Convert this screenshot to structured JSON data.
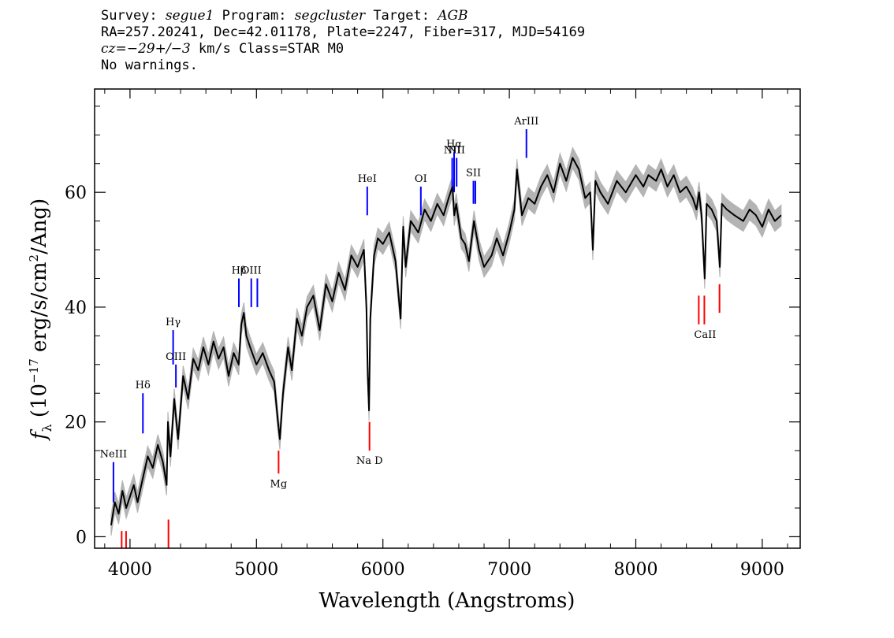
{
  "header": {
    "l1_survey_label": "Survey: ",
    "l1_survey": "segue1",
    "l1_program_label": " Program: ",
    "l1_program": "segcluster",
    "l1_target_label": " Target: ",
    "l1_target": "AGB",
    "l2": "RA=257.20241, Dec=42.01178, Plate=2247, Fiber=317, MJD=54169",
    "l3_cz": "cz=−29+/−3",
    "l3_rest": " km/s Class=STAR M0",
    "l4": "No warnings."
  },
  "colors": {
    "spectrum": "#000000",
    "error_band": "#b4b4b4",
    "emission": "#0000ff",
    "absorption": "#ff0000",
    "annotation": "#000000"
  },
  "chart_data": {
    "type": "line",
    "xlabel": "Wavelength (Angstroms)",
    "ylabel_f": "f",
    "ylabel_sub": "λ",
    "ylabel_rest_a": " (10",
    "ylabel_exp": "−17",
    "ylabel_rest_b": " erg/s/cm",
    "ylabel_exp2": "2",
    "ylabel_rest_c": "/Ang)",
    "xlim": [
      3720,
      9300
    ],
    "ylim": [
      -2,
      78
    ],
    "xticks": [
      4000,
      5000,
      6000,
      7000,
      8000,
      9000
    ],
    "xtick_labels": [
      "4000",
      "5000",
      "6000",
      "7000",
      "8000",
      "9000"
    ],
    "yticks": [
      0,
      20,
      40,
      60
    ],
    "ytick_labels": [
      "0",
      "20",
      "40",
      "60"
    ],
    "series": [
      {
        "x": [
          3850,
          3880,
          3910,
          3940,
          3970,
          4000,
          4030,
          4060,
          4100,
          4140,
          4180,
          4220,
          4260,
          4290,
          4300,
          4320,
          4350,
          4380,
          4420,
          4460,
          4500,
          4540,
          4580,
          4620,
          4660,
          4700,
          4740,
          4780,
          4820,
          4860,
          4880,
          4900,
          4920,
          4950,
          5000,
          5050,
          5100,
          5140,
          5170,
          5185,
          5210,
          5250,
          5280,
          5320,
          5360,
          5400,
          5450,
          5500,
          5550,
          5600,
          5650,
          5700,
          5750,
          5800,
          5850,
          5870,
          5880,
          5890,
          5900,
          5930,
          5960,
          6000,
          6050,
          6100,
          6140,
          6160,
          6180,
          6220,
          6280,
          6330,
          6380,
          6430,
          6480,
          6520,
          6550,
          6564,
          6580,
          6620,
          6650,
          6680,
          6720,
          6760,
          6800,
          6860,
          6900,
          6950,
          7000,
          7040,
          7060,
          7100,
          7150,
          7200,
          7250,
          7300,
          7350,
          7400,
          7450,
          7500,
          7550,
          7600,
          7640,
          7660,
          7680,
          7720,
          7780,
          7850,
          7920,
          8000,
          8060,
          8100,
          8160,
          8200,
          8250,
          8300,
          8350,
          8400,
          8450,
          8480,
          8500,
          8520,
          8545,
          8560,
          8600,
          8640,
          8665,
          8680,
          8720,
          8780,
          8850,
          8900,
          8950,
          9000,
          9050,
          9100,
          9150
        ],
        "y": [
          2,
          6,
          4,
          8,
          5,
          7,
          9,
          6,
          10,
          14,
          12,
          16,
          13,
          9,
          20,
          14,
          24,
          17,
          28,
          24,
          31,
          29,
          33,
          30,
          34,
          31,
          33,
          28,
          32,
          30,
          37,
          39,
          35,
          33,
          30,
          32,
          29,
          27,
          20,
          17,
          25,
          33,
          29,
          38,
          35,
          40,
          42,
          36,
          44,
          41,
          46,
          43,
          49,
          47,
          50,
          40,
          28,
          22,
          38,
          49,
          52,
          51,
          53,
          48,
          38,
          54,
          47,
          55,
          53,
          57,
          55,
          58,
          56,
          59,
          61,
          56,
          58,
          52,
          51,
          48,
          55,
          50,
          47,
          49,
          52,
          49,
          53,
          57,
          64,
          56,
          59,
          58,
          61,
          63,
          60,
          65,
          62,
          66,
          64,
          59,
          60,
          50,
          62,
          60,
          58,
          62,
          60,
          63,
          61,
          63,
          62,
          64,
          61,
          63,
          60,
          61,
          59,
          57,
          60,
          56,
          45,
          58,
          57,
          55,
          47,
          58,
          57,
          56,
          55,
          57,
          56,
          54,
          57,
          55,
          56
        ]
      }
    ],
    "error_band": 1.8,
    "emission_lines": [
      {
        "label": "NeIII",
        "x": 3869,
        "y1": 6,
        "y2": 13
      },
      {
        "label": "Hδ",
        "x": 4102,
        "y1": 18,
        "y2": 25
      },
      {
        "label": "Hγ",
        "x": 4341,
        "y1": 30,
        "y2": 36
      },
      {
        "label": "OIII",
        "x": 4363,
        "y1": 26,
        "y2": 30
      },
      {
        "label": "Hβ",
        "x": 4861,
        "y1": 40,
        "y2": 45
      },
      {
        "label": "OIII",
        "x": 4959,
        "y1": 40,
        "y2": 45
      },
      {
        "label": "",
        "x": 5007,
        "y1": 40,
        "y2": 45
      },
      {
        "label": "HeI",
        "x": 5876,
        "y1": 56,
        "y2": 61
      },
      {
        "label": "OI",
        "x": 6300,
        "y1": 56,
        "y2": 61
      },
      {
        "label": "NII",
        "x": 6548,
        "y1": 61,
        "y2": 66
      },
      {
        "label": "Hα",
        "x": 6563,
        "y1": 60,
        "y2": 67
      },
      {
        "label": "NII",
        "x": 6583,
        "y1": 61,
        "y2": 66
      },
      {
        "label": "SII",
        "x": 6716,
        "y1": 58,
        "y2": 62
      },
      {
        "label": "",
        "x": 6731,
        "y1": 58,
        "y2": 62
      },
      {
        "label": "ArIII",
        "x": 7135,
        "y1": 66,
        "y2": 71
      }
    ],
    "absorption_lines": [
      {
        "label": "",
        "x": 3934,
        "y1": -2,
        "y2": 1
      },
      {
        "label": "",
        "x": 3969,
        "y1": -2,
        "y2": 1
      },
      {
        "label": "",
        "x": 4304,
        "y1": -2,
        "y2": 3
      },
      {
        "label": "Mg",
        "x": 5175,
        "y1": 11,
        "y2": 15
      },
      {
        "label": "Na D",
        "x": 5894,
        "y1": 15,
        "y2": 20
      },
      {
        "label": "CaII",
        "x": 8498,
        "y1": 37,
        "y2": 42
      },
      {
        "label": "",
        "x": 8542,
        "y1": 37,
        "y2": 42
      },
      {
        "label": "",
        "x": 8662,
        "y1": 39,
        "y2": 44
      }
    ]
  }
}
